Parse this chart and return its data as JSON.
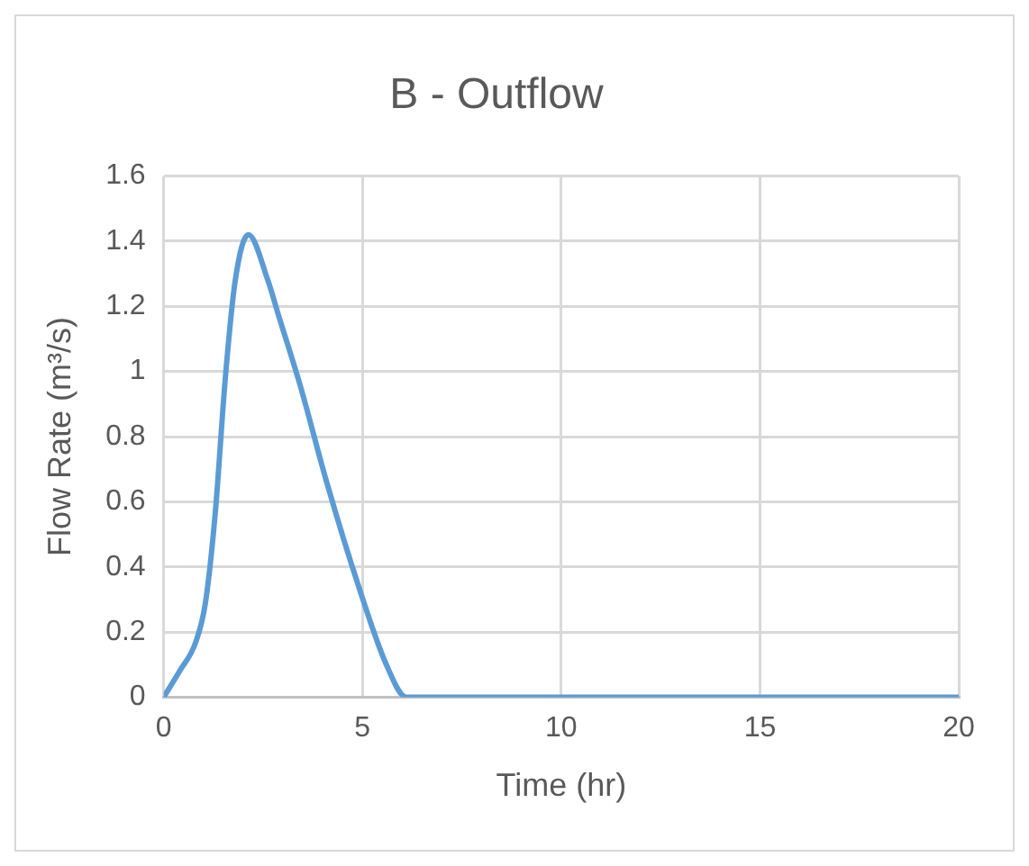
{
  "chart_data": {
    "type": "line",
    "title": "B - Outflow",
    "xlabel": "Time (hr)",
    "ylabel": "Flow Rate (m³/s)",
    "x": [
      0,
      0.4,
      0.81,
      1.05,
      1.3,
      1.55,
      1.8,
      2.13,
      2.62,
      2.87,
      3.45,
      4.1,
      4.93,
      5.6,
      6.1,
      6.5,
      7,
      10,
      15,
      20
    ],
    "series": [
      {
        "color": "#5b9bd5",
        "values": [
          0,
          0.08,
          0.17,
          0.29,
          0.57,
          0.98,
          1.28,
          1.42,
          1.28,
          1.18,
          0.95,
          0.66,
          0.33,
          0.1,
          0,
          0,
          0,
          0,
          0,
          0
        ]
      }
    ],
    "xlim": [
      0,
      20
    ],
    "xticks": [
      0,
      5,
      10,
      15,
      20
    ],
    "ylim": [
      0,
      1.6
    ],
    "yticks": [
      0,
      0.2,
      0.4,
      0.6,
      0.8,
      1,
      1.2,
      1.4,
      1.6
    ],
    "grid": true,
    "legend": false,
    "marker": "none",
    "line_style": "solid"
  }
}
